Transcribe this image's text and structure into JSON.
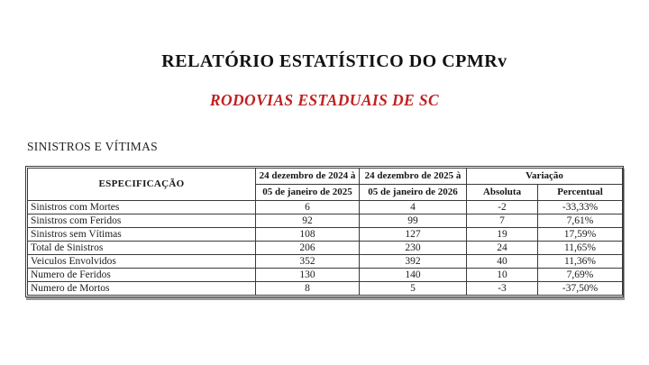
{
  "document": {
    "title": "RELATÓRIO ESTATÍSTICO DO CPMRv",
    "subtitle": "RODOVIAS ESTADUAIS DE SC",
    "section_heading": "SINISTROS E VÍTIMAS",
    "colors": {
      "subtitle_red": "#c02020",
      "body_text": "#1b1b1b",
      "table_border": "#3a3a3a",
      "table_shadow": "#9a9a9a",
      "background": "#ffffff"
    }
  },
  "table": {
    "spec_header": "ESPECIFICAÇÃO",
    "period1": {
      "line1": "24 dezembro de 2024 à",
      "line2": "05 de janeiro de 2025"
    },
    "period2": {
      "line1": "24 dezembro de 2025 à",
      "line2": "05 de janeiro de 2026"
    },
    "variation": {
      "header": "Variação",
      "absolute": "Absoluta",
      "percent": "Percentual"
    },
    "rows": [
      {
        "label": "Sinistros com Mortes",
        "p1": "6",
        "p2": "4",
        "abs": "-2",
        "pct": "-33,33%"
      },
      {
        "label": "Sinistros com Feridos",
        "p1": "92",
        "p2": "99",
        "abs": "7",
        "pct": "7,61%"
      },
      {
        "label": "Sinistros sem Vítimas",
        "p1": "108",
        "p2": "127",
        "abs": "19",
        "pct": "17,59%"
      },
      {
        "label": "Total de Sinistros",
        "p1": "206",
        "p2": "230",
        "abs": "24",
        "pct": "11,65%"
      },
      {
        "label": "Veiculos Envolvidos",
        "p1": "352",
        "p2": "392",
        "abs": "40",
        "pct": "11,36%"
      },
      {
        "label": "Numero de Feridos",
        "p1": "130",
        "p2": "140",
        "abs": "10",
        "pct": "7,69%"
      },
      {
        "label": "Numero de Mortos",
        "p1": "8",
        "p2": "5",
        "abs": "-3",
        "pct": "-37,50%"
      }
    ]
  }
}
